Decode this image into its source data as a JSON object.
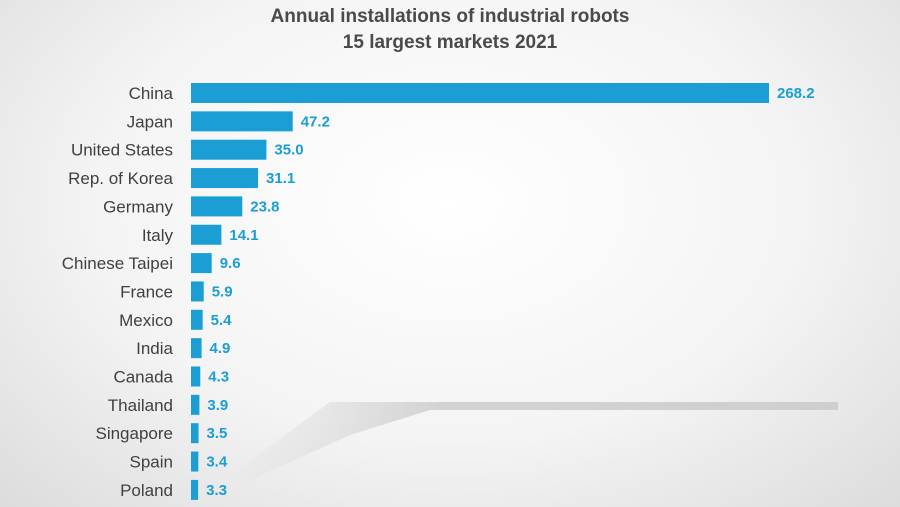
{
  "chart_data": {
    "type": "bar",
    "orientation": "horizontal",
    "title": "Annual installations of industrial robots",
    "subtitle": "15 largest markets 2021",
    "xlabel": "",
    "ylabel": "",
    "categories": [
      "China",
      "Japan",
      "United States",
      "Rep. of Korea",
      "Germany",
      "Italy",
      "Chinese Taipei",
      "France",
      "Mexico",
      "India",
      "Canada",
      "Thailand",
      "Singapore",
      "Spain",
      "Poland"
    ],
    "values": [
      268.2,
      47.2,
      35.0,
      31.1,
      23.8,
      14.1,
      9.6,
      5.9,
      5.4,
      4.9,
      4.3,
      3.9,
      3.5,
      3.4,
      3.3
    ],
    "value_labels": [
      "268.2",
      "47.2",
      "35.0",
      "31.1",
      "23.8",
      "14.1",
      "9.6",
      "5.9",
      "5.4",
      "4.9",
      "4.3",
      "3.9",
      "3.5",
      "3.4",
      "3.3"
    ],
    "xlim": [
      0,
      268.2
    ],
    "grid": false,
    "legend": "none",
    "bar_color": "#1a9ed4",
    "label_color": "#1a9ed4"
  }
}
